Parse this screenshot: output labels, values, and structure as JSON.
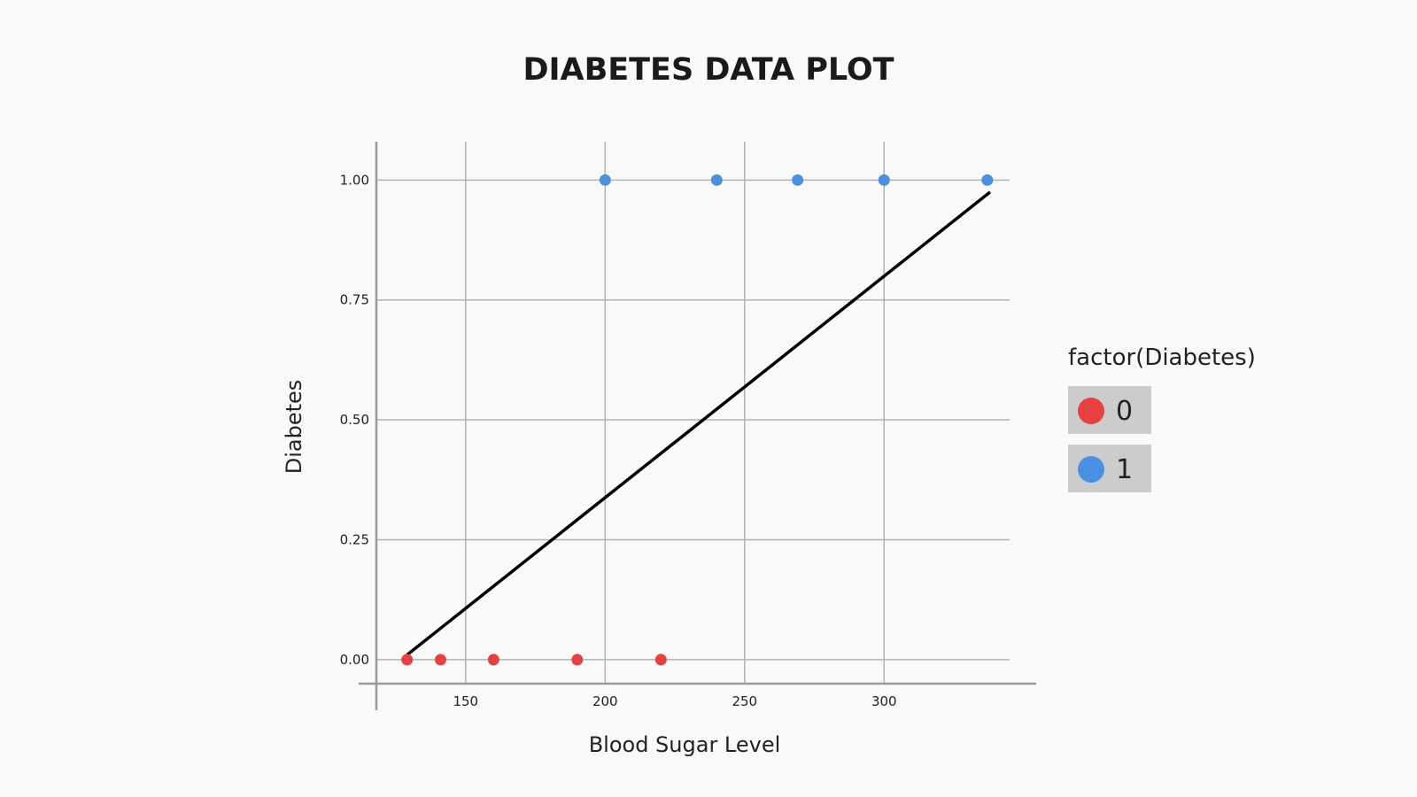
{
  "chart_data": {
    "type": "scatter",
    "title": "DIABETES DATA PLOT",
    "xlabel": "Blood Sugar Level",
    "ylabel": "Diabetes",
    "xlim": [
      118,
      345
    ],
    "ylim": [
      -0.05,
      1.08
    ],
    "xticks": [
      150,
      200,
      250,
      300
    ],
    "xtick_labels": [
      "150",
      "200",
      "250",
      "300"
    ],
    "yticks": [
      0,
      0.25,
      0.5,
      0.75,
      1.0
    ],
    "ytick_labels": [
      "0.00",
      "0.25",
      "0.50",
      "0.75",
      "1.00"
    ],
    "grid": true,
    "legend": {
      "title": "factor(Diabetes)",
      "placement": "right"
    },
    "series": [
      {
        "name": "0",
        "color": "#e84040",
        "x": [
          129,
          141,
          160,
          190,
          220
        ],
        "y": [
          0,
          0,
          0,
          0,
          0
        ]
      },
      {
        "name": "1",
        "color": "#4a90e2",
        "x": [
          200,
          240,
          269,
          300,
          337
        ],
        "y": [
          1,
          1,
          1,
          1,
          1
        ]
      }
    ],
    "fit_line": {
      "color": "#000000",
      "x": [
        129,
        338
      ],
      "y": [
        0.01,
        0.975
      ]
    }
  }
}
